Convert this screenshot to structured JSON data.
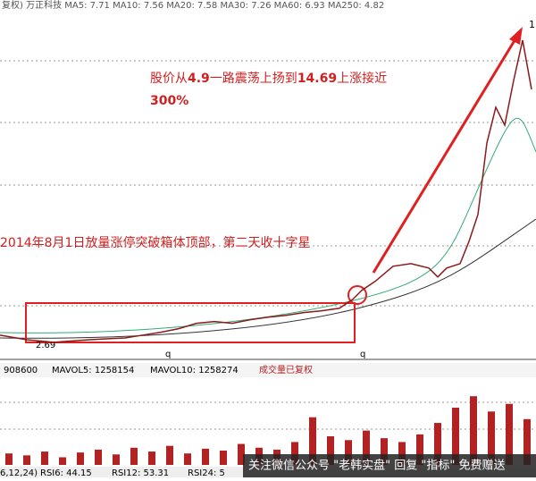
{
  "chart_data": {
    "type": "line",
    "header": "复权) 万正科技   MA5: 7.71   MA10: 7.56   MA20: 7.58   MA30: 7.26   MA60: 6.93   MA250: 4.82",
    "top_label": "1",
    "low_label": "2.69",
    "period_marks": [
      "q",
      "q"
    ],
    "annotation_1": {
      "parts": [
        "股价从",
        "4.9",
        "一路震荡上扬到",
        "14.69",
        "上涨接近"
      ],
      "line2": "300%"
    },
    "annotation_2": "2014年8月1日放量涨停突破箱体顶部，第二天收十字星",
    "x": [
      0,
      30,
      60,
      100,
      140,
      160,
      180,
      200,
      220,
      240,
      260,
      280,
      300,
      320,
      340,
      360,
      380,
      395,
      405,
      420,
      440,
      460,
      480,
      490,
      500,
      515,
      525,
      535,
      545,
      555,
      565,
      575,
      585,
      595
    ],
    "xlim": [
      0,
      600
    ],
    "series": [
      {
        "color": "#8b1a1a",
        "values": [
          3.01,
          2.83,
          2.73,
          2.83,
          2.9,
          3.01,
          3.12,
          3.26,
          3.47,
          3.54,
          3.47,
          3.61,
          3.71,
          3.78,
          3.89,
          3.96,
          4.06,
          4.41,
          4.76,
          5.11,
          5.7,
          5.8,
          5.63,
          5.28,
          5.63,
          5.8,
          6.67,
          7.72,
          10.51,
          11.91,
          11.21,
          12.96,
          14.53,
          12.61
        ]
      }
    ],
    "ylim": [
      2.2,
      16.1
    ],
    "volume": {
      "header": [
        "908600",
        "MAVOL5: 1258154",
        "MAVOL10: 1258274",
        "成交量已复权"
      ],
      "color": "#b22222",
      "values": [
        600000,
        500000,
        700000,
        400000,
        650000,
        800000,
        550000,
        900000,
        700000,
        1000000,
        600000,
        850000,
        750000,
        1100000,
        900000,
        800000,
        1200000,
        2500000,
        1500000,
        1300000,
        1800000,
        1400000,
        1200000,
        1600000,
        2200000,
        3000000,
        3600000,
        2800000,
        3200000,
        2400000
      ],
      "vlim": [
        0,
        4500000
      ]
    },
    "indicator_row": [
      "6,12,24)",
      "RSI6: 44.15",
      "RSI12: 53.31",
      "RSI24: 5"
    ],
    "watermark": "关注微信公众号 \"老韩实盘\" 回复 \"指标\" 免费赠送"
  }
}
